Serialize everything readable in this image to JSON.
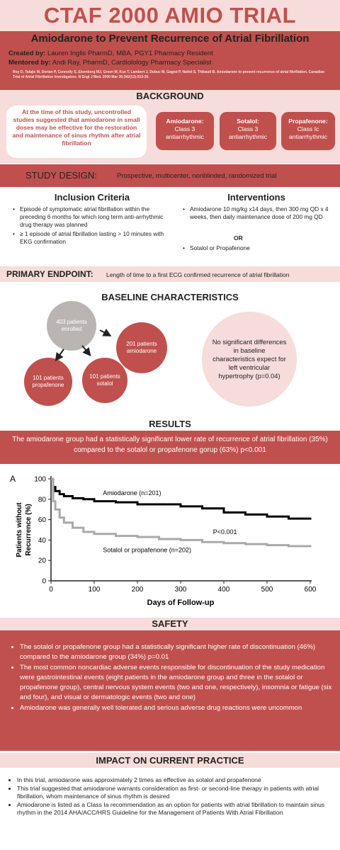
{
  "header": {
    "title": "CTAF 2000 AMIO TRIAL",
    "subtitle": "Amiodarone to Prevent Recurrence of Atrial Fibrillation",
    "created_label": "Created by:",
    "created_value": "Lauren Inglis PharmD, MBA, PGY1 Pharmacy Resident",
    "mentored_label": "Mentored by:",
    "mentored_value": "Andi Ray, PharmD, Cardiolology Pharmacy Specialist",
    "citation": "Roy D, Talajic M, Dorian P, Connolly S, Eisenberg MJ, Green M, Kus T, Lambert J, Dubuc M, Gagné P, Nattel S, Thibault B. Amiodarone to prevent recurrence of atrial fibrillation. Canadian Trial of Atrial Fibrillation Investigators. N Engl J Med. 2000 Mar 30;342(13):913-20."
  },
  "background": {
    "heading": "BACKGROUND",
    "callout": "At the time of this study, uncontrolled studies suggested that amiodarone in small doses may be effective for the restoration and maintenance of sinus rhythm after atrial fibrillation",
    "drugs": [
      {
        "name": "Amiodarone:",
        "cls": "Class 3 antiarrhythmic"
      },
      {
        "name": "Sotalol:",
        "cls": "Class 3 antiarrhythmic"
      },
      {
        "name": "Propafenone:",
        "cls": "Class Ic antiarrhythmic"
      }
    ]
  },
  "study_design": {
    "label": "STUDY DESIGN:",
    "value": "Prospective, multicenter, nonblinded, randomized trial",
    "inclusion_heading": "Inclusion Criteria",
    "inclusion": [
      "Episode of symptomatic atrial fibrillation within the preceding 6 months for which long term anti-arrhythmic drug therapy was planned",
      "≥ 1 episode of atrial fibrillation lasting > 10 minutes with EKG confirmation"
    ],
    "interventions_heading": "Interventions",
    "interventions": [
      "Amiodarone 10 mg/kg x14 days, then 300 mg QD x 4 weeks, then daily maintenance dose of 200 mg QD",
      "Sotalol or Propafenone"
    ],
    "or_label": "OR"
  },
  "primary_endpoint": {
    "label": "PRIMARY ENDPOINT:",
    "value": "Length of time to a first ECG confirmed recurrence of atrial fibrillation"
  },
  "baseline": {
    "heading": "BASELINE CHARACTERISTICS",
    "enrolled": "403 patients enrolled",
    "amiodarone": "201 patients amiodarone",
    "sotalol": "101 patients sotalol",
    "propafenone": "101 patients propafenone",
    "note": "No significant differences in baseline characteristics expect for left ventricular hypertrophy (p=0.04)"
  },
  "results": {
    "heading": "RESULTS",
    "summary": "The amiodarone group had a statistically significant lower rate of recurrence of atrial fibrillation (35%) compared to the sotalol or propafenone gorup (63%) p<0.001"
  },
  "chart_data": {
    "type": "line",
    "panel_label": "A",
    "xlabel": "Days of Follow-up",
    "ylabel": "Patients without Recurrence (%)",
    "xlim": [
      0,
      600
    ],
    "ylim": [
      0,
      100
    ],
    "xticks": [
      0,
      100,
      200,
      300,
      400,
      500,
      600
    ],
    "yticks": [
      0,
      20,
      40,
      60,
      80,
      100
    ],
    "annotation": "P<0.001",
    "series": [
      {
        "name": "Amiodarone (n=201)",
        "color": "#000000",
        "x": [
          0,
          5,
          10,
          20,
          30,
          50,
          75,
          100,
          150,
          200,
          250,
          300,
          350,
          400,
          450,
          500,
          550,
          600
        ],
        "y": [
          100,
          92,
          88,
          85,
          83,
          81,
          80,
          78,
          77,
          75,
          75,
          73,
          71,
          67,
          65,
          63,
          61,
          60
        ]
      },
      {
        "name": "Sotalol or propafenone (n=202)",
        "color": "#a9a9a9",
        "x": [
          0,
          5,
          10,
          20,
          30,
          50,
          75,
          100,
          150,
          200,
          250,
          300,
          350,
          400,
          450,
          500,
          550,
          600
        ],
        "y": [
          100,
          78,
          70,
          62,
          57,
          52,
          48,
          46,
          44,
          43,
          41,
          40,
          38,
          37,
          36,
          35,
          34,
          33
        ]
      }
    ]
  },
  "safety": {
    "heading": "SAFETY",
    "items": [
      "The sotalol or propafenone group had a statistically significant higher rate of discontinuation (46%) compared to the amiodarone group (34%) p=0.01",
      "The most common noncardiac adverse events responsible for discontinuation of the study medication were gastrointestinal events (eight patients in the amiodarone group and three in the sotalol or propafenone group), central nervous system events (two and one, respectively), insomnia or fatigue (six and four), and visual or dermatologic events (two and one)",
      "Amiodarone was generally well tolerated and serious adverse drug reactions were uncommon"
    ]
  },
  "impact": {
    "heading": "IMPACT ON CURRENT PRACTICE",
    "items": [
      "In this trial, amiodarone was approximately 2 times as effective as sotalol and propafenone",
      "This trial suggested that amiodarone warrants consideration as first- or second-line therapy in patients with atrial fibrillation, whom maintenance of sinus rhythm is desired",
      "Amiodarone is listed as a Class Ia recommendation as an option for patients with atrial fibrillation to maintain sinus rhythm in the 2014 AHA/ACC/HRS Guideline for the Management of Patients With Atrial Fibrillation"
    ]
  },
  "colors": {
    "accent": "#c0504d",
    "light": "#f6dcda",
    "gray": "#bab5b3"
  }
}
